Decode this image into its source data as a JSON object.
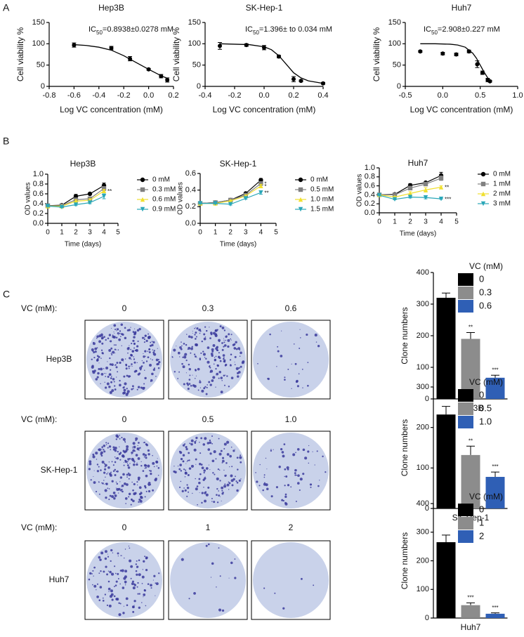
{
  "panel_labels": [
    "A",
    "B",
    "C"
  ],
  "chart_data": [
    {
      "type": "scatter",
      "title": "Hep3B",
      "annotation": [
        "IC",
        "50",
        "=0.8938±0.0278 mM"
      ],
      "x_label": "Log VC concentration (mM)",
      "y_label": "Cell viability %",
      "x": [
        -0.6,
        -0.3,
        -0.15,
        0,
        0.1,
        0.15
      ],
      "values": [
        97,
        90,
        65,
        40,
        24,
        15
      ],
      "errors": [
        5,
        4,
        5,
        2,
        4,
        5
      ],
      "fit": {
        "x": [
          -0.6,
          -0.5,
          -0.4,
          -0.3,
          -0.2,
          -0.1,
          0,
          0.1,
          0.15
        ],
        "values": [
          98,
          96,
          92,
          85,
          72,
          56,
          40,
          25,
          19
        ]
      },
      "color": "#000000",
      "xlim": [
        -0.8,
        0.2
      ],
      "xticks": [
        -0.8,
        -0.6,
        -0.4,
        -0.2,
        {
          "value": 0,
          "label": "0.0"
        },
        0.2
      ],
      "ylim": [
        0,
        150
      ],
      "yticks": [
        0,
        50,
        100,
        150
      ]
    },
    {
      "type": "scatter",
      "title": "SK-Hep-1",
      "annotation": [
        "IC",
        "50",
        "=1.396± to 0.034 mM"
      ],
      "x_label": "Log VC concentration (mM)",
      "y_label": "Cell viability %",
      "x": [
        -0.3,
        -0.12,
        0,
        0.1,
        0.2,
        0.25,
        0.4
      ],
      "values": [
        95,
        97,
        91,
        70,
        17,
        13,
        7
      ],
      "errors": [
        8,
        3,
        5,
        3,
        6,
        2,
        2
      ],
      "fit": {
        "x": [
          -0.3,
          -0.2,
          -0.1,
          0,
          0.05,
          0.1,
          0.15,
          0.2,
          0.25,
          0.3,
          0.4
        ],
        "values": [
          100,
          99,
          98,
          93,
          86,
          72,
          52,
          32,
          20,
          13,
          7
        ]
      },
      "color": "#000000",
      "xlim": [
        -0.4,
        0.4
      ],
      "xticks": [
        -0.4,
        -0.2,
        {
          "value": 0,
          "label": "0.0"
        },
        0.2,
        0.4
      ],
      "ylim": [
        0,
        150
      ],
      "yticks": [
        0,
        50,
        100,
        150
      ]
    },
    {
      "type": "scatter",
      "title": "Huh7",
      "annotation": [
        "IC",
        "50",
        "=2.908±0.227 mM"
      ],
      "x_label": "Log VC concentration (mM)",
      "y_label": "Cell viability %",
      "x": [
        -0.3,
        0,
        0.18,
        0.35,
        0.46,
        0.53,
        0.6,
        0.63
      ],
      "values": [
        82,
        77,
        75,
        82,
        52,
        32,
        15,
        12
      ],
      "errors": [
        2,
        3,
        3,
        3,
        8,
        4,
        4,
        2
      ],
      "fit": {
        "x": [
          -0.3,
          -0.1,
          0.1,
          0.2,
          0.3,
          0.4,
          0.45,
          0.5,
          0.55,
          0.6,
          0.65
        ],
        "values": [
          100,
          100,
          99,
          97,
          92,
          78,
          66,
          50,
          34,
          20,
          12
        ]
      },
      "color": "#000000",
      "xlim": [
        -0.5,
        1.0
      ],
      "xticks": [
        -0.5,
        {
          "value": 0,
          "label": "0.0"
        },
        0.5,
        {
          "value": 1,
          "label": "1.0"
        }
      ],
      "ylim": [
        0,
        150
      ],
      "yticks": [
        0,
        50,
        100,
        150
      ]
    },
    {
      "type": "line",
      "title": "Hep3B",
      "x_label": "Time (days)",
      "y_label": "OD values",
      "x": [
        0,
        1,
        2,
        3,
        4
      ],
      "xlim": [
        0,
        5
      ],
      "xticks": [
        0,
        1,
        2,
        3,
        4,
        5
      ],
      "ylim": [
        0,
        1.0
      ],
      "yticks": [
        {
          "value": 0,
          "label": "0.0"
        },
        0.2,
        0.4,
        0.6,
        0.8,
        {
          "value": 1,
          "label": "1.0"
        }
      ],
      "series": [
        {
          "name": "0 mM",
          "color": "#000000",
          "marker": "circle",
          "values": [
            0.36,
            0.37,
            0.55,
            0.6,
            0.77
          ],
          "errors": [
            0.01,
            0.01,
            0.04,
            0.02,
            0.05
          ]
        },
        {
          "name": "0.3 mM",
          "color": "#808080",
          "marker": "square",
          "values": [
            0.36,
            0.36,
            0.48,
            0.5,
            0.71
          ],
          "errors": [
            0.01,
            0.01,
            0.03,
            0.03,
            0.04
          ]
        },
        {
          "name": "0.6 mM",
          "color": "#f0e030",
          "marker": "triangle-up",
          "values": [
            0.35,
            0.35,
            0.45,
            0.47,
            0.66
          ],
          "errors": [
            0.01,
            0.01,
            0.03,
            0.03,
            0.03
          ],
          "sig": "**"
        },
        {
          "name": "0.9 mM",
          "color": "#2aa7b8",
          "marker": "triangle-down",
          "values": [
            0.35,
            0.33,
            0.38,
            0.42,
            0.55
          ],
          "errors": [
            0.01,
            0.01,
            0.02,
            0.02,
            0.05
          ]
        }
      ]
    },
    {
      "type": "line",
      "title": "SK-Hep-1",
      "x_label": "Time (days)",
      "y_label": "OD values",
      "x": [
        0,
        1,
        2,
        3,
        4
      ],
      "xlim": [
        0,
        5
      ],
      "xticks": [
        0,
        1,
        2,
        3,
        4,
        5
      ],
      "ylim": [
        0,
        0.6
      ],
      "yticks": [
        {
          "value": 0,
          "label": "0.0"
        },
        0.2,
        0.4,
        0.6
      ],
      "series": [
        {
          "name": "0 mM",
          "color": "#000000",
          "marker": "circle",
          "values": [
            0.24,
            0.25,
            0.28,
            0.36,
            0.52
          ],
          "errors": [
            0.005,
            0.005,
            0.01,
            0.01,
            0.02
          ]
        },
        {
          "name": "0.5 mM",
          "color": "#808080",
          "marker": "square",
          "values": [
            0.24,
            0.25,
            0.28,
            0.34,
            0.48
          ],
          "errors": [
            0.005,
            0.005,
            0.01,
            0.01,
            0.02
          ],
          "sig": "*"
        },
        {
          "name": "1.0 mM",
          "color": "#f0e030",
          "marker": "triangle-up",
          "values": [
            0.24,
            0.24,
            0.27,
            0.33,
            0.45
          ],
          "errors": [
            0.005,
            0.005,
            0.01,
            0.01,
            0.02
          ],
          "sig": "*"
        },
        {
          "name": "1.5 mM",
          "color": "#2aa7b8",
          "marker": "triangle-down",
          "values": [
            0.24,
            0.24,
            0.23,
            0.3,
            0.37
          ],
          "errors": [
            0.005,
            0.005,
            0.01,
            0.01,
            0.02
          ],
          "sig": "**"
        }
      ]
    },
    {
      "type": "line",
      "title": "Huh7",
      "x_label": "Time (days)",
      "y_label": "OD values",
      "x": [
        0,
        1,
        2,
        3,
        4
      ],
      "xlim": [
        0,
        5
      ],
      "xticks": [
        0,
        1,
        2,
        3,
        4,
        5
      ],
      "ylim": [
        0,
        1.0
      ],
      "yticks": [
        {
          "value": 0,
          "label": "0.0"
        },
        0.2,
        0.4,
        0.6,
        0.8,
        {
          "value": 1,
          "label": "1.0"
        }
      ],
      "series": [
        {
          "name": "0 mM",
          "color": "#000000",
          "marker": "circle",
          "values": [
            0.4,
            0.41,
            0.61,
            0.67,
            0.83
          ],
          "errors": [
            0.01,
            0.01,
            0.04,
            0.02,
            0.07
          ]
        },
        {
          "name": "1 mM",
          "color": "#808080",
          "marker": "square",
          "values": [
            0.4,
            0.4,
            0.55,
            0.64,
            0.77
          ],
          "errors": [
            0.01,
            0.01,
            0.04,
            0.03,
            0.05
          ]
        },
        {
          "name": "2 mM",
          "color": "#f0e030",
          "marker": "triangle-up",
          "values": [
            0.4,
            0.35,
            0.43,
            0.51,
            0.57
          ],
          "errors": [
            0.01,
            0.02,
            0.04,
            0.05,
            0.03
          ],
          "sig": "**"
        },
        {
          "name": "3 mM",
          "color": "#2aa7b8",
          "marker": "triangle-down",
          "values": [
            0.39,
            0.3,
            0.35,
            0.34,
            0.31
          ],
          "errors": [
            0.01,
            0.01,
            0.02,
            0.03,
            0.01
          ],
          "sig": "***"
        }
      ]
    },
    {
      "type": "bar",
      "x_label": "Hep3B",
      "y_label": "Clone numbers",
      "legend_title": "VC (mM)",
      "categories": [
        "0",
        "0.3",
        "0.6"
      ],
      "values": [
        320,
        190,
        67
      ],
      "errors": [
        15,
        20,
        8
      ],
      "annotations": [
        null,
        "**",
        "***"
      ],
      "colors": [
        "#000000",
        "#8c8c8c",
        "#2f5fb5"
      ],
      "ylim": [
        0,
        400
      ],
      "yticks": [
        0,
        100,
        200,
        300,
        400
      ]
    },
    {
      "type": "bar",
      "x_label": "SK-Hep-1",
      "y_label": "Clone numbers",
      "legend_title": "VC (mM)",
      "categories": [
        "0",
        "0.5",
        "1.0"
      ],
      "values": [
        232,
        132,
        78
      ],
      "errors": [
        20,
        22,
        12
      ],
      "annotations": [
        null,
        "**",
        "***"
      ],
      "colors": [
        "#000000",
        "#8c8c8c",
        "#2f5fb5"
      ],
      "ylim": [
        0,
        300
      ],
      "yticks": [
        0,
        100,
        200,
        300
      ]
    },
    {
      "type": "bar",
      "x_label": "Huh7",
      "y_label": "Clone numbers",
      "legend_title": "VC (mM)",
      "categories": [
        "0",
        "1",
        "2"
      ],
      "values": [
        265,
        45,
        15
      ],
      "errors": [
        25,
        8,
        3
      ],
      "annotations": [
        null,
        "***",
        "***"
      ],
      "colors": [
        "#000000",
        "#8c8c8c",
        "#2f5fb5"
      ],
      "ylim": [
        0,
        400
      ],
      "yticks": [
        0,
        100,
        200,
        300,
        400
      ]
    }
  ],
  "plates": {
    "header": "VC (mM):",
    "rows": [
      {
        "label": "Hep3B",
        "doses": [
          "0",
          "0.3",
          "0.6"
        ]
      },
      {
        "label": "SK-Hep-1",
        "doses": [
          "0",
          "0.5",
          "1.0"
        ]
      },
      {
        "label": "Huh7",
        "doses": [
          "0",
          "1",
          "2"
        ]
      }
    ]
  }
}
